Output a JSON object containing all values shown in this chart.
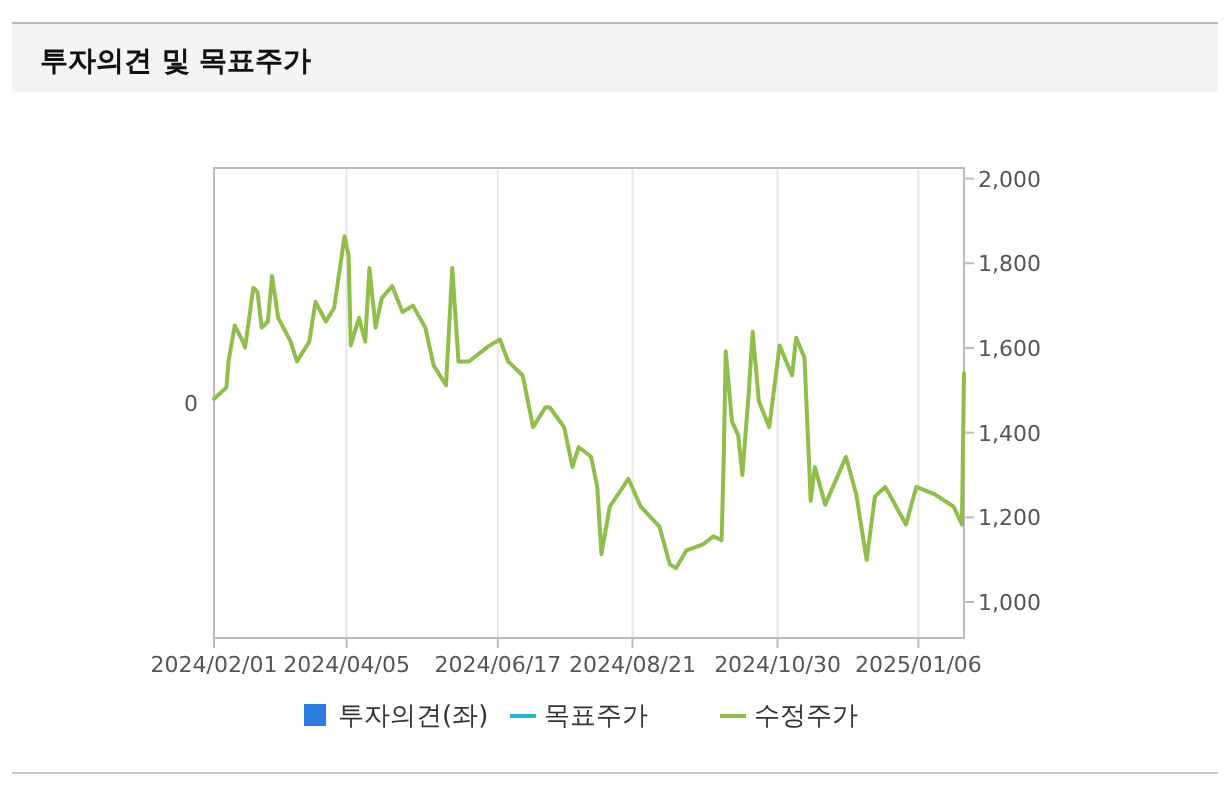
{
  "chart_data": {
    "type": "line",
    "title": "투자의견 및 목표주가",
    "xlim": [
      "2024-02-01",
      "2025-01-28"
    ],
    "xticks": [
      {
        "value": "2024-02-01",
        "label": "2024/02/01"
      },
      {
        "value": "2024-04-05",
        "label": "2024/04/05"
      },
      {
        "value": "2024-06-17",
        "label": "2024/06/17"
      },
      {
        "value": "2024-08-21",
        "label": "2024/08/21"
      },
      {
        "value": "2024-10-30",
        "label": "2024/10/30"
      },
      {
        "value": "2025-01-06",
        "label": "2025/01/06"
      }
    ],
    "annotations": [
      "0"
    ],
    "y2lim": [
      915,
      2025
    ],
    "y2ticks": [
      {
        "value": 1000,
        "label": "1,000"
      },
      {
        "value": 1200,
        "label": "1,200"
      },
      {
        "value": 1400,
        "label": "1,400"
      },
      {
        "value": 1600,
        "label": "1,600"
      },
      {
        "value": 1800,
        "label": "1,800"
      },
      {
        "value": 2000,
        "label": "2,000"
      }
    ],
    "grid": "x",
    "legend": "bottom",
    "marker": "none",
    "line_style": "solid",
    "series": [
      {
        "name": "투자의견(좌)",
        "type": "bar",
        "color": "#2b7de0"
      },
      {
        "name": "목표주가",
        "type": "line",
        "color": "#22b5d8"
      },
      {
        "name": "수정주가",
        "axis": "y2",
        "color": "#8fbf4a",
        "x": [
          "2024-02-01",
          "2024-02-02",
          "2024-02-07",
          "2024-02-08",
          "2024-02-11",
          "2024-02-15",
          "2024-02-16",
          "2024-02-20",
          "2024-02-22",
          "2024-02-24",
          "2024-02-27",
          "2024-02-29",
          "2024-03-03",
          "2024-03-09",
          "2024-03-12",
          "2024-03-18",
          "2024-03-21",
          "2024-03-26",
          "2024-03-30",
          "2024-04-04",
          "2024-04-06",
          "2024-04-07",
          "2024-04-11",
          "2024-04-14",
          "2024-04-16",
          "2024-04-19",
          "2024-04-22",
          "2024-04-27",
          "2024-05-02",
          "2024-05-07",
          "2024-05-13",
          "2024-05-17",
          "2024-05-23",
          "2024-05-26",
          "2024-05-29",
          "2024-06-03",
          "2024-06-13",
          "2024-06-18",
          "2024-06-22",
          "2024-06-29",
          "2024-07-04",
          "2024-07-10",
          "2024-07-12",
          "2024-07-19",
          "2024-07-23",
          "2024-07-26",
          "2024-08-01",
          "2024-08-04",
          "2024-08-06",
          "2024-08-10",
          "2024-08-19",
          "2024-08-25",
          "2024-09-03",
          "2024-09-08",
          "2024-09-11",
          "2024-09-16",
          "2024-09-24",
          "2024-09-29",
          "2024-10-03",
          "2024-10-04",
          "2024-10-05",
          "2024-10-08",
          "2024-10-11",
          "2024-10-13",
          "2024-10-16",
          "2024-10-18",
          "2024-10-21",
          "2024-10-26",
          "2024-10-31",
          "2024-11-06",
          "2024-11-08",
          "2024-11-12",
          "2024-11-15",
          "2024-11-17",
          "2024-11-22",
          "2024-11-27",
          "2024-12-02",
          "2024-12-07",
          "2024-12-12",
          "2024-12-16",
          "2024-12-21",
          "2024-12-31",
          "2025-01-05",
          "2025-01-14",
          "2025-01-23",
          "2025-01-27",
          "2025-01-28"
        ],
        "values": [
          1480,
          1484,
          1507,
          1568,
          1653,
          1615,
          1601,
          1742,
          1732,
          1648,
          1662,
          1770,
          1671,
          1615,
          1568,
          1615,
          1709,
          1662,
          1695,
          1864,
          1817,
          1606,
          1671,
          1615,
          1789,
          1648,
          1718,
          1746,
          1685,
          1700,
          1648,
          1559,
          1512,
          1789,
          1568,
          1568,
          1606,
          1620,
          1568,
          1535,
          1413,
          1460,
          1460,
          1413,
          1319,
          1366,
          1343,
          1272,
          1113,
          1225,
          1291,
          1225,
          1178,
          1089,
          1080,
          1122,
          1136,
          1155,
          1146,
          1333,
          1592,
          1427,
          1394,
          1300,
          1488,
          1638,
          1474,
          1413,
          1606,
          1535,
          1624,
          1577,
          1239,
          1319,
          1230,
          1286,
          1343,
          1254,
          1099,
          1249,
          1272,
          1183,
          1272,
          1254,
          1225,
          1183,
          1540
        ]
      }
    ]
  }
}
